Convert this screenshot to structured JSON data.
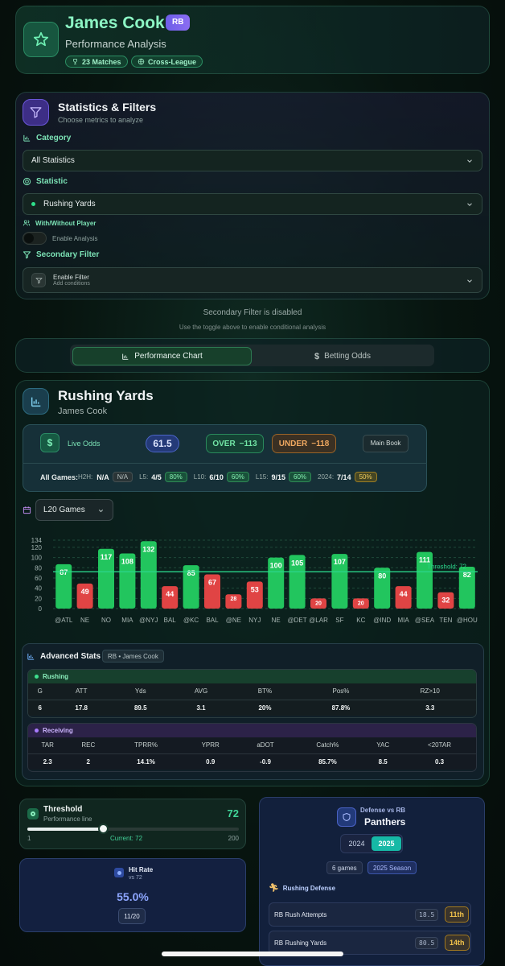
{
  "player": {
    "name": "James Cook",
    "position": "RB",
    "subtitle": "Performance Analysis",
    "matches": "23 Matches",
    "league": "Cross-League"
  },
  "filters": {
    "title": "Statistics & Filters",
    "subtitle": "Choose metrics to analyze",
    "category_label": "Category",
    "category_value": "All Statistics",
    "statistic_label": "Statistic",
    "statistic_value": "Rushing Yards",
    "with_without_label": "With/Without Player",
    "enable_analysis": "Enable Analysis",
    "secondary_label": "Secondary Filter",
    "enable_filter": "Enable Filter",
    "add_conditions": "Add conditions",
    "disabled_title": "Secondary Filter is disabled",
    "disabled_hint": "Use the toggle above to enable conditional analysis"
  },
  "tabs": {
    "chart": "Performance Chart",
    "odds": "Betting Odds"
  },
  "chart_panel": {
    "title": "Rushing Yards",
    "player": "James Cook",
    "live_odds": "Live Odds",
    "line": "61.5",
    "over": "OVER",
    "over_odds": "−113",
    "under": "UNDER",
    "under_odds": "−118",
    "book": "Main Book",
    "all_games": "All Games:",
    "h2h_label": "H2H:",
    "h2h_value": "N/A",
    "h2h_pct": "N/A",
    "l5_label": "L5:",
    "l5_value": "4/5",
    "l5_pct": "80%",
    "l10_label": "L10:",
    "l10_value": "6/10",
    "l10_pct": "60%",
    "l15_label": "L15:",
    "l15_value": "9/15",
    "l15_pct": "60%",
    "season_label": "2024:",
    "season_value": "7/14",
    "season_pct": "50%",
    "games_select": "L20 Games",
    "threshold_label": "Threshold: 72"
  },
  "chart_data": {
    "type": "bar",
    "categories": [
      "@ATL",
      "NE",
      "NO",
      "MIA",
      "@NYJ",
      "BAL",
      "@KC",
      "BAL",
      "@NE",
      "NYJ",
      "NE",
      "@DET",
      "@LAR",
      "SF",
      "KC",
      "@IND",
      "MIA",
      "@SEA",
      "TEN",
      "@HOU"
    ],
    "values": [
      87,
      49,
      117,
      108,
      132,
      44,
      85,
      67,
      28,
      53,
      100,
      105,
      20,
      107,
      20,
      80,
      44,
      111,
      32,
      82
    ],
    "y_ticks": [
      0,
      20,
      40,
      60,
      80,
      100,
      120,
      134
    ],
    "ylim": [
      0,
      134
    ],
    "threshold": 72,
    "colors": {
      "over": "#22c55e",
      "under": "#e04444",
      "threshold": "#2bd48a"
    }
  },
  "advanced": {
    "title": "Advanced Stats",
    "tag": "RB • James Cook",
    "rushing_label": "Rushing",
    "rushing_headers": [
      "G",
      "ATT",
      "Yds",
      "AVG",
      "BT%",
      "Pos%",
      "RZ>10"
    ],
    "rushing_values": [
      "6",
      "17.8",
      "89.5",
      "3.1",
      "20%",
      "87.8%",
      "3.3"
    ],
    "receiving_label": "Receiving",
    "receiving_headers": [
      "TAR",
      "REC",
      "TPRR%",
      "YPRR",
      "aDOT",
      "Catch%",
      "YAC",
      "<20TAR"
    ],
    "receiving_values": [
      "2.3",
      "2",
      "14.1%",
      "0.9",
      "-0.9",
      "85.7%",
      "8.5",
      "0.3"
    ]
  },
  "threshold": {
    "title": "Threshold",
    "subtitle": "Performance line",
    "value": "72",
    "min": "1",
    "current": "Current: 72",
    "max": "200",
    "slider_fraction": 0.357
  },
  "hit_rate": {
    "title": "Hit Rate",
    "vs": "vs 72",
    "value": "55.0%",
    "count": "11/20"
  },
  "defense": {
    "label": "Defense vs RB",
    "team": "Panthers",
    "year_a": "2024",
    "year_b": "2025",
    "games": "6 games",
    "season": "2025 Season",
    "section": "Rushing Defense",
    "rows": [
      {
        "label": "RB Rush Attempts",
        "value": "18.5",
        "rank": "11th"
      },
      {
        "label": "RB Rushing Yards",
        "value": "80.5",
        "rank": "14th"
      }
    ]
  }
}
